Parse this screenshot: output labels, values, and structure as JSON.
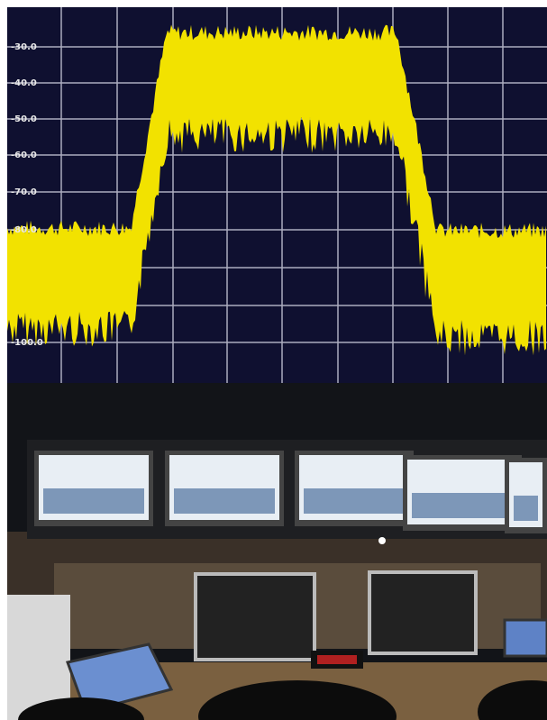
{
  "spectrum": {
    "y_tick_labels": [
      "-30.0",
      "-40.0",
      "-50.0",
      "-60.0",
      "-70.0",
      "-80.0",
      "-100.0"
    ]
  }
}
